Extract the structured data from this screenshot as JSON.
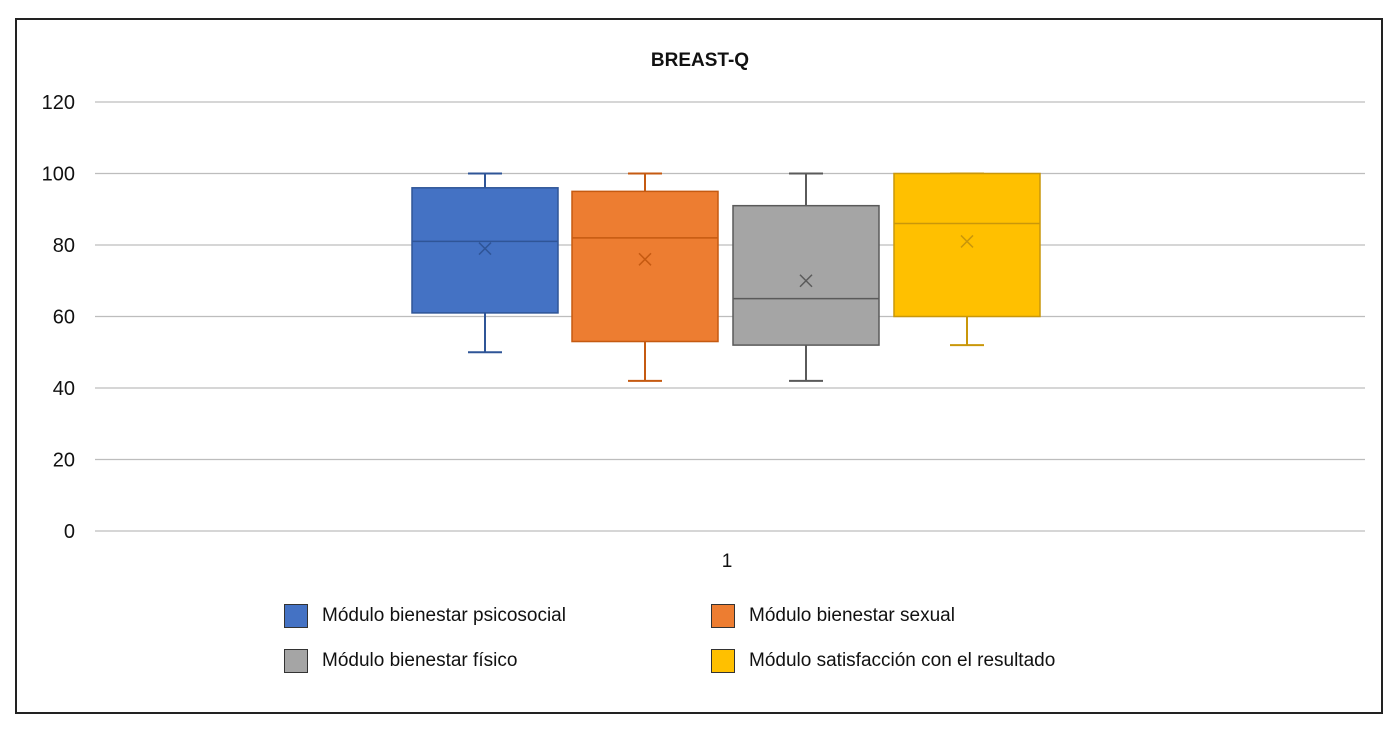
{
  "chart_data": {
    "type": "boxplot",
    "title": "BREAST-Q",
    "categories": [
      "1"
    ],
    "ylim": [
      0,
      120
    ],
    "yticks": [
      0,
      20,
      40,
      60,
      80,
      100,
      120
    ],
    "grid": true,
    "legend_position": "bottom",
    "series": [
      {
        "name": "Módulo bienestar psicosocial",
        "color": "#4472C4",
        "edge": "#2F5597",
        "min": 50,
        "q1": 61,
        "median": 81,
        "q3": 96,
        "max": 100,
        "mean": 79
      },
      {
        "name": "Módulo bienestar sexual",
        "color": "#ED7D31",
        "edge": "#C55A11",
        "min": 42,
        "q1": 53,
        "median": 82,
        "q3": 95,
        "max": 100,
        "mean": 76
      },
      {
        "name": "Módulo bienestar físico",
        "color": "#A5A5A5",
        "edge": "#5a5a5a",
        "min": 42,
        "q1": 52,
        "median": 65,
        "q3": 91,
        "max": 100,
        "mean": 70
      },
      {
        "name": "Módulo satisfacción con el resultado",
        "color": "#FFC000",
        "edge": "#C9970A",
        "min": 52,
        "q1": 60,
        "median": 86,
        "q3": 100,
        "max": 100,
        "mean": 81
      }
    ]
  }
}
